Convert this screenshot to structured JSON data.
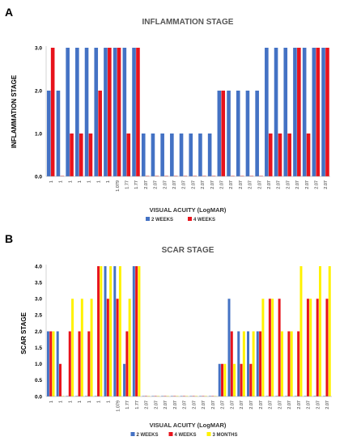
{
  "chart_data": [
    {
      "type": "bar",
      "panel": "A",
      "title": "INFLAMMATION STAGE",
      "xlabel": "VISUAL ACUITY (LogMAR)",
      "ylabel": "INFLAMMATION STAGE",
      "ylim": [
        0,
        3
      ],
      "yticks": [
        "0.0",
        "1.0",
        "2.0",
        "3.0"
      ],
      "grid": false,
      "legend_position": "bottom",
      "categories": [
        "1",
        "1",
        "1",
        "1",
        "1",
        "1",
        "1",
        "1.079",
        "1.77",
        "1.77",
        "2.07",
        "2.07",
        "2.07",
        "2.07",
        "2.07",
        "2.07",
        "2.07",
        "2.07",
        "2.07",
        "2.07",
        "2.07",
        "2.07",
        "2.07",
        "2.07",
        "2.07",
        "2.07",
        "2.07",
        "2.07",
        "2.07",
        "2.07"
      ],
      "series": [
        {
          "name": "2 WEEKS",
          "color": "#4472C4",
          "values": [
            2,
            2,
            3,
            3,
            3,
            3,
            3,
            3,
            3,
            3,
            1,
            1,
            1,
            1,
            1,
            1,
            1,
            1,
            2,
            2,
            2,
            2,
            2,
            3,
            3,
            3,
            3,
            3,
            3,
            3
          ]
        },
        {
          "name": "4 WEEKS",
          "color": "#E8131C",
          "values": [
            3,
            0,
            1,
            1,
            1,
            2,
            3,
            3,
            1,
            3,
            0,
            0,
            0,
            0,
            0,
            0,
            0,
            0,
            2,
            0,
            0,
            0,
            0,
            1,
            1,
            1,
            3,
            1,
            3,
            3
          ]
        }
      ]
    },
    {
      "type": "bar",
      "panel": "B",
      "title": "SCAR STAGE",
      "xlabel": "VISUAL ACUITY (LogMAR)",
      "ylabel": "SCAR STAGE",
      "ylim": [
        0,
        4
      ],
      "yticks": [
        "0.0",
        "0.5",
        "1.0",
        "1.5",
        "2.0",
        "2.5",
        "3.0",
        "3.5",
        "4.0"
      ],
      "grid": false,
      "legend_position": "bottom",
      "categories": [
        "1",
        "1",
        "1",
        "1",
        "1",
        "1",
        "1",
        "1.079",
        "1.77",
        "1.77",
        "2.07",
        "2.07",
        "2.07",
        "2.07",
        "2.07",
        "2.07",
        "2.07",
        "2.07",
        "2.07",
        "2.07",
        "2.07",
        "2.07",
        "2.07",
        "2.07",
        "2.07",
        "2.07",
        "2.07",
        "2.07",
        "2.07",
        "2.07"
      ],
      "series": [
        {
          "name": "2 WEEKS",
          "color": "#4472C4",
          "values": [
            2,
            2,
            0,
            0,
            0,
            0,
            4,
            4,
            1,
            4,
            0,
            0,
            0,
            0,
            0,
            0,
            0,
            0,
            1,
            3,
            2,
            2,
            2,
            0,
            0,
            0,
            0,
            0,
            0,
            0
          ]
        },
        {
          "name": "4 WEEKS",
          "color": "#E8131C",
          "values": [
            2,
            1,
            2,
            2,
            2,
            4,
            3,
            3,
            2,
            4,
            0,
            0,
            0,
            0,
            0,
            0,
            0,
            0,
            1,
            2,
            1,
            1,
            2,
            3,
            3,
            2,
            2,
            3,
            3,
            3
          ]
        },
        {
          "name": "3 MONTHS",
          "color": "#FFF200",
          "values": [
            2,
            0,
            3,
            3,
            3,
            4,
            4,
            4,
            3,
            4,
            0,
            0,
            0,
            0,
            0,
            0,
            0,
            0,
            1,
            1,
            2,
            2,
            3,
            3,
            2,
            2,
            4,
            3,
            4,
            4
          ]
        }
      ]
    }
  ]
}
